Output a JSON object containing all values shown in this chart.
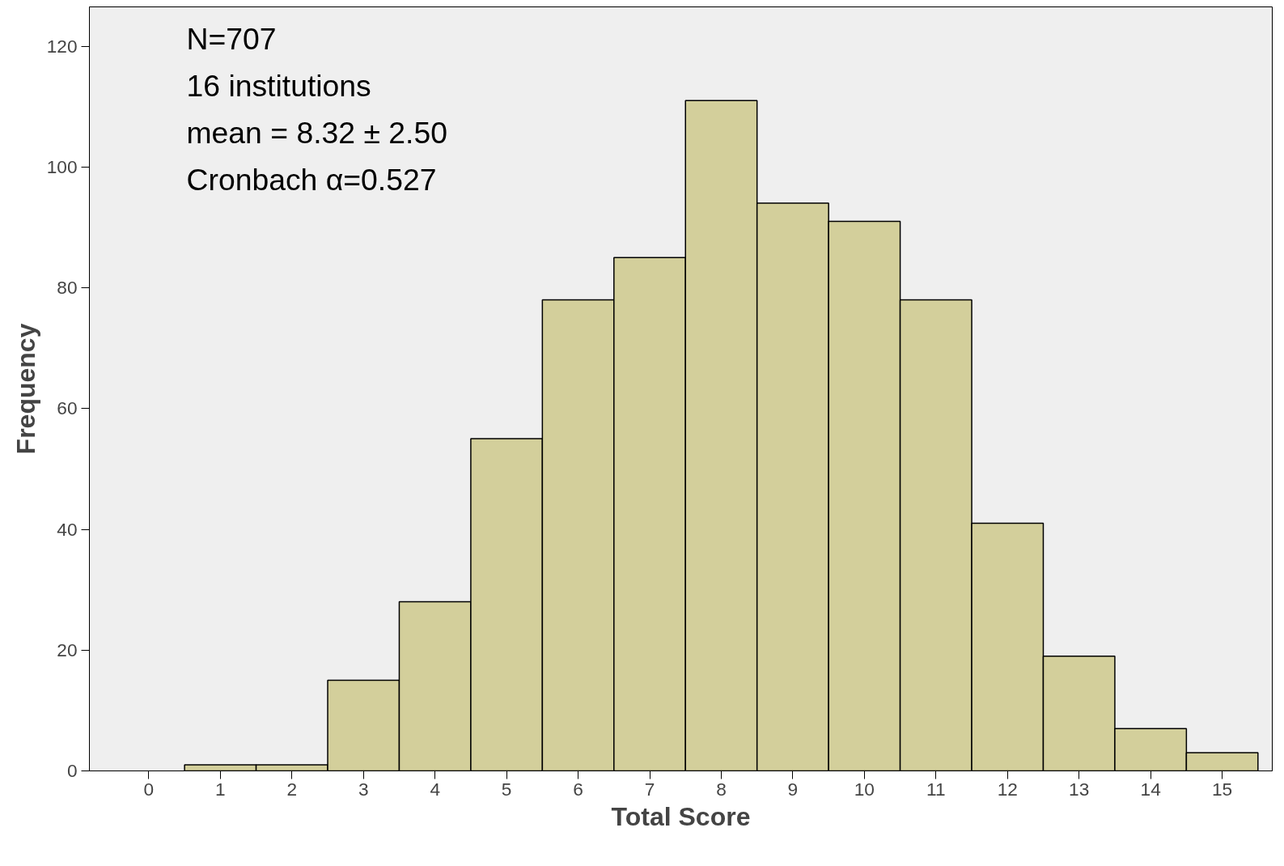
{
  "chart_data": {
    "type": "histogram",
    "xlabel": "Total Score",
    "ylabel": "Frequency",
    "bins": [
      0.5,
      1.5,
      2.5,
      3.5,
      4.5,
      5.5,
      6.5,
      7.5,
      8.5,
      9.5,
      10.5,
      11.5,
      12.5,
      13.5,
      14.5,
      15.5
    ],
    "values": [
      1,
      1,
      15,
      28,
      55,
      78,
      85,
      111,
      94,
      91,
      78,
      41,
      19,
      7,
      3
    ],
    "color": "#d3cf9b",
    "xlim": [
      -0.83,
      15.7
    ],
    "xticks": [
      0,
      1,
      2,
      3,
      4,
      5,
      6,
      7,
      8,
      9,
      10,
      11,
      12,
      13,
      14,
      15
    ],
    "ylim": [
      0,
      126.5
    ],
    "yticks": [
      0,
      20,
      40,
      60,
      80,
      100,
      120
    ],
    "grid": false,
    "annotations": [
      "N=707",
      "16 institutions",
      "mean = 8.32 ± 2.50",
      "Cronbach α=0.527"
    ]
  }
}
